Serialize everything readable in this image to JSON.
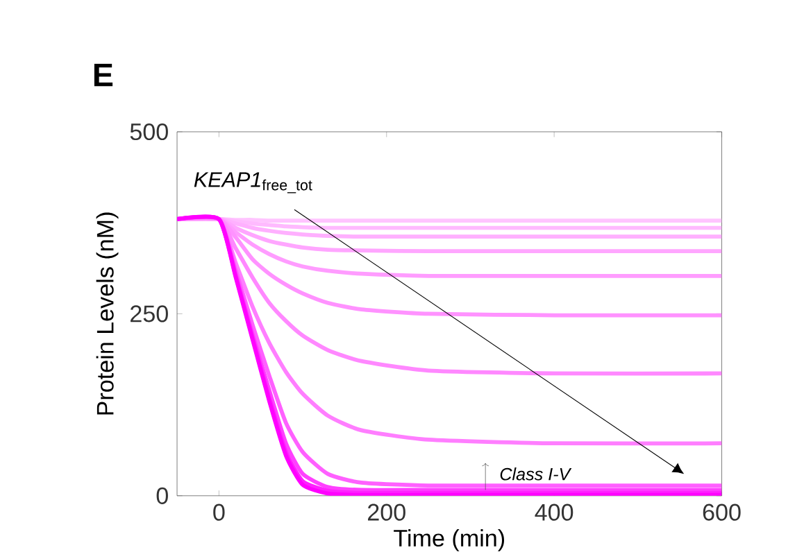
{
  "chart_data": {
    "type": "line",
    "xlabel": "Time (min)",
    "ylabel": "Protein Levels (nM)",
    "annotations": [
      "E",
      "*KEAP1*$_{free_tot}$",
      "Class I-V"
    ],
    "xlim": [
      -50,
      600
    ],
    "ylim": [
      0,
      500
    ],
    "xticks": [
      0,
      200,
      400,
      600
    ],
    "yticks": [
      0,
      250,
      500
    ],
    "grid": false,
    "marker": "none",
    "line_style": "solid",
    "x": [
      -50,
      0,
      20,
      40,
      60,
      80,
      100,
      130,
      170,
      250,
      400,
      600
    ],
    "series": [
      {
        "color": "#ffc4ff",
        "values": [
          380,
          380,
          379,
          379,
          378,
          378,
          378,
          378,
          378,
          378,
          378,
          378
        ]
      },
      {
        "color": "#ffbaff",
        "values": [
          380,
          380,
          377,
          374,
          372,
          370,
          369,
          368,
          368,
          368,
          368,
          368
        ]
      },
      {
        "color": "#ffb0ff",
        "values": [
          380,
          380,
          374,
          368,
          364,
          361,
          359,
          357,
          356,
          356,
          356,
          356
        ]
      },
      {
        "color": "#ffa6ff",
        "values": [
          380,
          380,
          368,
          358,
          350,
          345,
          341,
          338,
          337,
          336,
          336,
          336
        ]
      },
      {
        "color": "#ff9cff",
        "values": [
          380,
          380,
          362,
          345,
          332,
          322,
          315,
          309,
          305,
          302,
          302,
          302
        ]
      },
      {
        "color": "#ff92ff",
        "values": [
          380,
          380,
          355,
          325,
          305,
          290,
          278,
          265,
          256,
          250,
          248,
          248
        ]
      },
      {
        "color": "#ff88ff",
        "values": [
          380,
          380,
          340,
          300,
          265,
          240,
          220,
          200,
          185,
          172,
          168,
          168
        ]
      },
      {
        "color": "#ff7eff",
        "values": [
          380,
          380,
          320,
          260,
          210,
          170,
          140,
          110,
          90,
          77,
          72,
          72
        ]
      },
      {
        "color": "#ff60ff",
        "values": [
          380,
          380,
          310,
          235,
          165,
          100,
          60,
          30,
          18,
          14,
          14,
          14
        ]
      },
      {
        "color": "#ff40ff",
        "values": [
          380,
          380,
          305,
          222,
          145,
          72,
          30,
          12,
          8,
          8,
          8,
          8
        ]
      },
      {
        "color": "#ff20ff",
        "values": [
          380,
          380,
          302,
          218,
          135,
          60,
          20,
          7,
          4,
          4,
          4,
          4
        ]
      },
      {
        "color": "#ff00ff",
        "values": [
          380,
          380,
          300,
          215,
          130,
          55,
          15,
          3,
          1,
          1,
          1,
          1
        ]
      }
    ]
  }
}
